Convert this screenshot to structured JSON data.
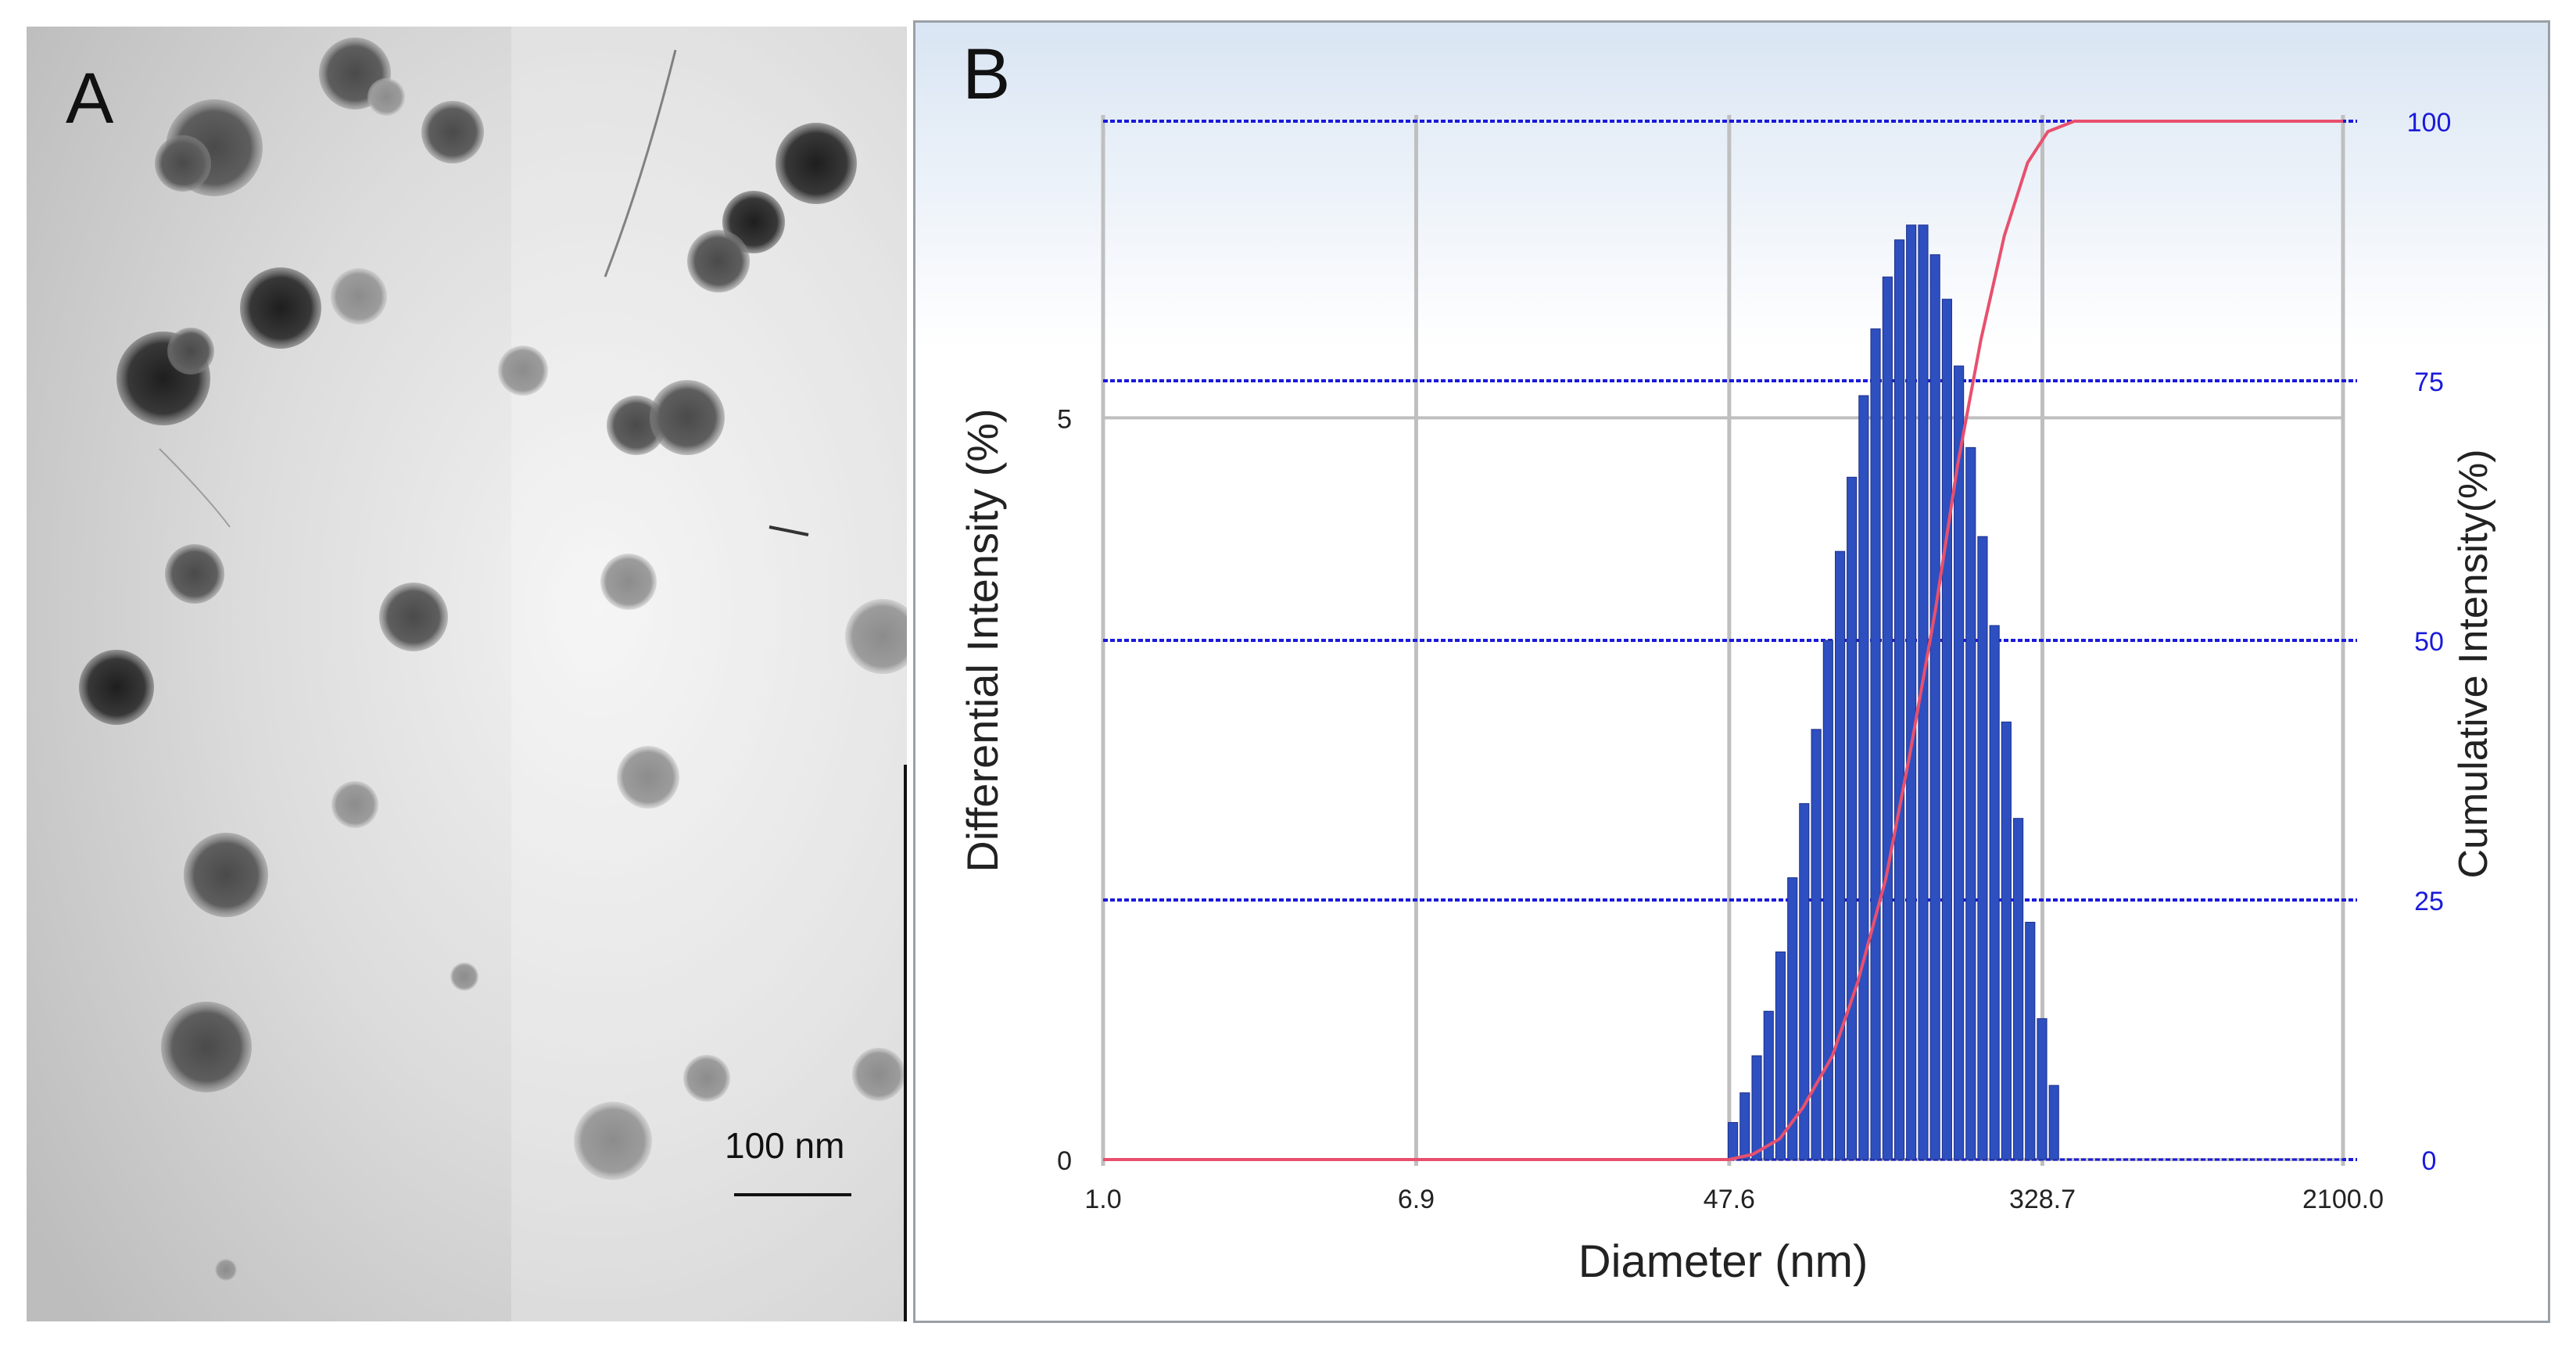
{
  "panel_a": {
    "label": "A",
    "scale_bar_label": "100 nm"
  },
  "panel_b": {
    "label": "B"
  },
  "chart_data": {
    "type": "bar",
    "title": "",
    "xlabel": "Diameter (nm)",
    "ylabel": "Differential Intensity (%)",
    "y2label": "Cumulative Intensity(%)",
    "x_scale": "log",
    "xlim": [
      1.0,
      2100.0
    ],
    "x_ticks": [
      "1.0",
      "6.9",
      "47.6",
      "328.7",
      "2100.0"
    ],
    "y_ticks": [
      "0",
      "5"
    ],
    "y2_ticks": [
      "0",
      "25",
      "50",
      "75",
      "100"
    ],
    "ylim": [
      0,
      7
    ],
    "y2lim": [
      0,
      100
    ],
    "grid": true,
    "colors": {
      "bars": "#2e4fbf",
      "cumulative": "#e8506e",
      "right_axis": "#1a1adb",
      "grid": "#bfbfbf"
    },
    "series": [
      {
        "kind": "bar",
        "x": [
          48.7,
          52.4,
          56.4,
          60.7,
          65.3,
          70.3,
          75.6,
          81.4,
          87.6,
          94.3,
          101.4,
          109.1,
          117.4,
          126.4,
          136.0,
          146.3,
          157.5,
          169.5,
          182.4,
          196.3,
          211.2,
          227.2,
          244.5,
          263.1,
          283.2,
          304.7,
          327.9,
          352.9
        ],
        "values": [
          0.25,
          0.45,
          0.7,
          1.0,
          1.4,
          1.9,
          2.4,
          2.9,
          3.5,
          4.1,
          4.6,
          5.15,
          5.6,
          5.95,
          6.2,
          6.3,
          6.3,
          6.1,
          5.8,
          5.35,
          4.8,
          4.2,
          3.6,
          2.95,
          2.3,
          1.6,
          0.95,
          0.5
        ]
      },
      {
        "kind": "line",
        "axis": "right",
        "x": [
          1.0,
          47.6,
          55.0,
          65.0,
          75.0,
          90.0,
          105.0,
          125.0,
          145.0,
          170.0,
          195.0,
          225.0,
          260.0,
          300.0,
          340.0,
          400.0,
          2100.0
        ],
        "values": [
          0,
          0,
          0.5,
          2,
          5,
          10,
          17,
          27,
          39,
          53,
          67,
          79,
          89,
          96,
          99,
          100,
          100
        ]
      }
    ]
  }
}
